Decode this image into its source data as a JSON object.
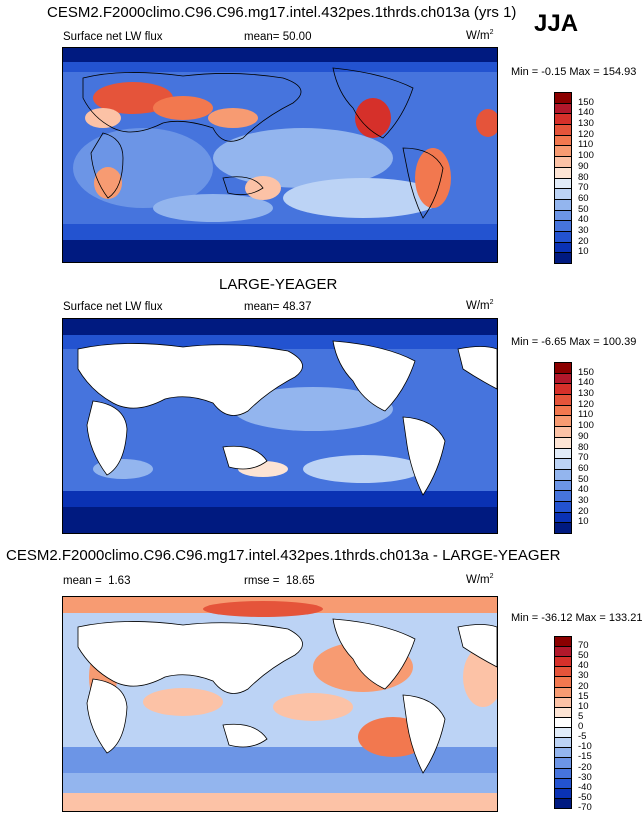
{
  "header": {
    "title_top": "CESM2.F2000climo.C96.C96.mg17.intel.432pes.1thrds.ch013a (yrs 1)",
    "season": "JJA",
    "title_mid": "LARGE-YEAGER",
    "title_bottom": "CESM2.F2000climo.C96.C96.mg17.intel.432pes.1thrds.ch013a - LARGE-YEAGER"
  },
  "panels": [
    {
      "variable": "Surface net LW flux",
      "stat_label": "mean=",
      "stat_value": "50.00",
      "units": "W/m",
      "units_sup": "2",
      "minmax": "Min = -0.15 Max = 154.93",
      "colorbar_labels": [
        "150",
        "140",
        "130",
        "120",
        "110",
        "100",
        "90",
        "80",
        "70",
        "60",
        "50",
        "40",
        "30",
        "20",
        "10"
      ]
    },
    {
      "variable": "Surface net LW flux",
      "stat_label": "mean=",
      "stat_value": "48.37",
      "units": "W/m",
      "units_sup": "2",
      "minmax": "Min = -6.65 Max = 100.39",
      "colorbar_labels": [
        "150",
        "140",
        "130",
        "120",
        "110",
        "100",
        "90",
        "80",
        "70",
        "60",
        "50",
        "40",
        "30",
        "20",
        "10"
      ]
    },
    {
      "stat_label": "mean =",
      "stat_value": "1.63",
      "rmse_label": "rmse =",
      "rmse_value": "18.65",
      "units": "W/m",
      "units_sup": "2",
      "minmax": "Min = -36.12 Max = 133.21",
      "colorbar_labels": [
        "70",
        "50",
        "40",
        "30",
        "20",
        "15",
        "10",
        "5",
        "0",
        "-5",
        "-10",
        "-15",
        "-20",
        "-30",
        "-40",
        "-50",
        "-70"
      ]
    }
  ],
  "colors": {
    "abs_scale": [
      "#8b0000",
      "#b2182b",
      "#d6302a",
      "#e5543a",
      "#f2784f",
      "#f79b72",
      "#fcc2a6",
      "#fde4d4",
      "#e1ecf9",
      "#bcd3f5",
      "#93b5ee",
      "#6c95e6",
      "#4674dd",
      "#2353d0",
      "#0a32b4",
      "#001a80"
    ],
    "diff_scale": [
      "#8b0000",
      "#b2182b",
      "#d6302a",
      "#e5543a",
      "#f2784f",
      "#f79b72",
      "#fcc2a6",
      "#fde4d4",
      "#ffffff",
      "#e1ecf9",
      "#bcd3f5",
      "#93b5ee",
      "#6c95e6",
      "#4674dd",
      "#2353d0",
      "#0a32b4",
      "#001a80"
    ]
  }
}
